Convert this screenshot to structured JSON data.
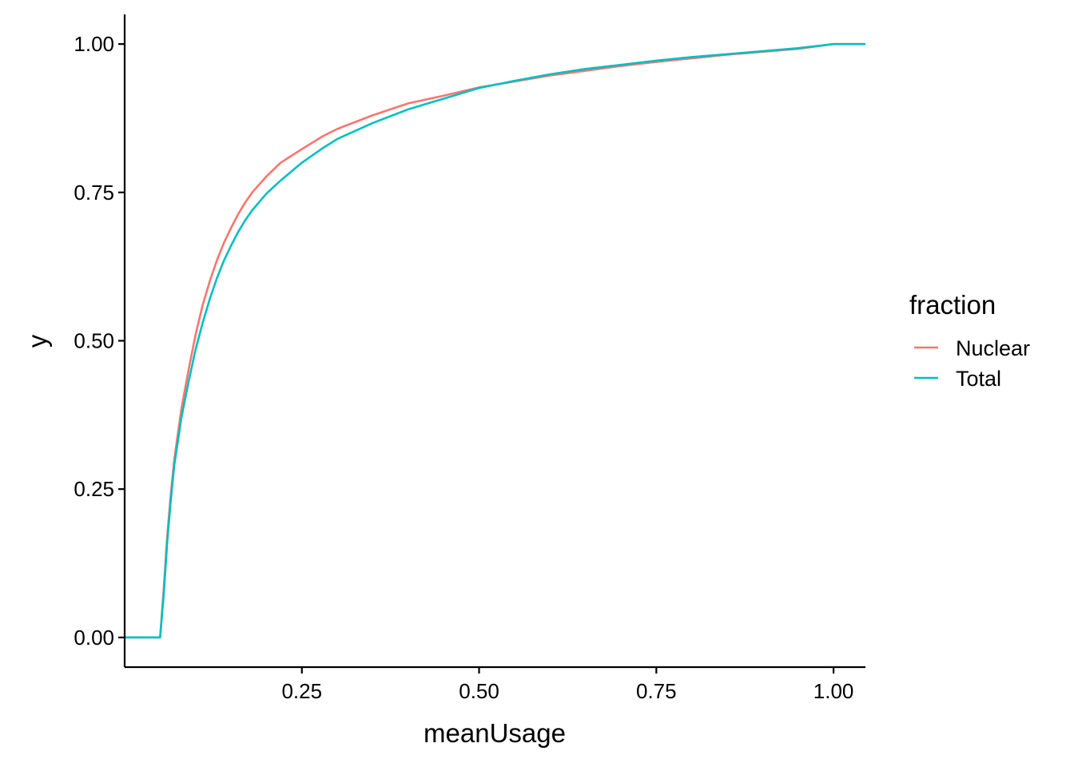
{
  "chart_data": {
    "type": "line",
    "title": "",
    "xlabel": "meanUsage",
    "ylabel": "y",
    "xlim": [
      0.0,
      1.045
    ],
    "ylim": [
      -0.05,
      1.05
    ],
    "x_ticks": [
      {
        "value": 0.25,
        "label": "0.25"
      },
      {
        "value": 0.5,
        "label": "0.50"
      },
      {
        "value": 0.75,
        "label": "0.75"
      },
      {
        "value": 1.0,
        "label": "1.00"
      }
    ],
    "y_ticks": [
      {
        "value": 0.0,
        "label": "0.00"
      },
      {
        "value": 0.25,
        "label": "0.25"
      },
      {
        "value": 0.5,
        "label": "0.50"
      },
      {
        "value": 0.75,
        "label": "0.75"
      },
      {
        "value": 1.0,
        "label": "1.00"
      }
    ],
    "grid": false,
    "legend": {
      "title": "fraction",
      "position": "right"
    },
    "series": [
      {
        "name": "Nuclear",
        "color": "#F8766D",
        "points": [
          [
            0.0,
            0.0
          ],
          [
            0.05,
            0.0
          ],
          [
            0.055,
            0.08
          ],
          [
            0.06,
            0.17
          ],
          [
            0.065,
            0.24
          ],
          [
            0.07,
            0.3
          ],
          [
            0.08,
            0.385
          ],
          [
            0.09,
            0.45
          ],
          [
            0.1,
            0.51
          ],
          [
            0.11,
            0.56
          ],
          [
            0.12,
            0.6
          ],
          [
            0.13,
            0.635
          ],
          [
            0.14,
            0.665
          ],
          [
            0.15,
            0.69
          ],
          [
            0.16,
            0.713
          ],
          [
            0.17,
            0.733
          ],
          [
            0.18,
            0.75
          ],
          [
            0.2,
            0.777
          ],
          [
            0.22,
            0.8
          ],
          [
            0.25,
            0.823
          ],
          [
            0.28,
            0.845
          ],
          [
            0.3,
            0.857
          ],
          [
            0.35,
            0.88
          ],
          [
            0.4,
            0.9
          ],
          [
            0.45,
            0.913
          ],
          [
            0.5,
            0.927
          ],
          [
            0.55,
            0.937
          ],
          [
            0.6,
            0.947
          ],
          [
            0.65,
            0.955
          ],
          [
            0.7,
            0.963
          ],
          [
            0.75,
            0.97
          ],
          [
            0.8,
            0.976
          ],
          [
            0.85,
            0.982
          ],
          [
            0.9,
            0.987
          ],
          [
            0.95,
            0.992
          ],
          [
            1.0,
            1.0
          ],
          [
            1.045,
            1.0
          ]
        ]
      },
      {
        "name": "Total",
        "color": "#00BFC4",
        "points": [
          [
            0.0,
            0.0
          ],
          [
            0.05,
            0.0
          ],
          [
            0.055,
            0.07
          ],
          [
            0.06,
            0.16
          ],
          [
            0.065,
            0.23
          ],
          [
            0.07,
            0.29
          ],
          [
            0.08,
            0.37
          ],
          [
            0.09,
            0.43
          ],
          [
            0.1,
            0.485
          ],
          [
            0.11,
            0.53
          ],
          [
            0.12,
            0.57
          ],
          [
            0.13,
            0.605
          ],
          [
            0.14,
            0.635
          ],
          [
            0.15,
            0.66
          ],
          [
            0.16,
            0.683
          ],
          [
            0.17,
            0.703
          ],
          [
            0.18,
            0.72
          ],
          [
            0.2,
            0.748
          ],
          [
            0.22,
            0.77
          ],
          [
            0.25,
            0.8
          ],
          [
            0.28,
            0.825
          ],
          [
            0.3,
            0.84
          ],
          [
            0.35,
            0.867
          ],
          [
            0.4,
            0.89
          ],
          [
            0.45,
            0.908
          ],
          [
            0.5,
            0.926
          ],
          [
            0.55,
            0.938
          ],
          [
            0.6,
            0.949
          ],
          [
            0.65,
            0.958
          ],
          [
            0.7,
            0.965
          ],
          [
            0.75,
            0.972
          ],
          [
            0.8,
            0.978
          ],
          [
            0.85,
            0.983
          ],
          [
            0.9,
            0.988
          ],
          [
            0.95,
            0.993
          ],
          [
            1.0,
            1.0
          ],
          [
            1.045,
            1.0
          ]
        ]
      }
    ]
  }
}
